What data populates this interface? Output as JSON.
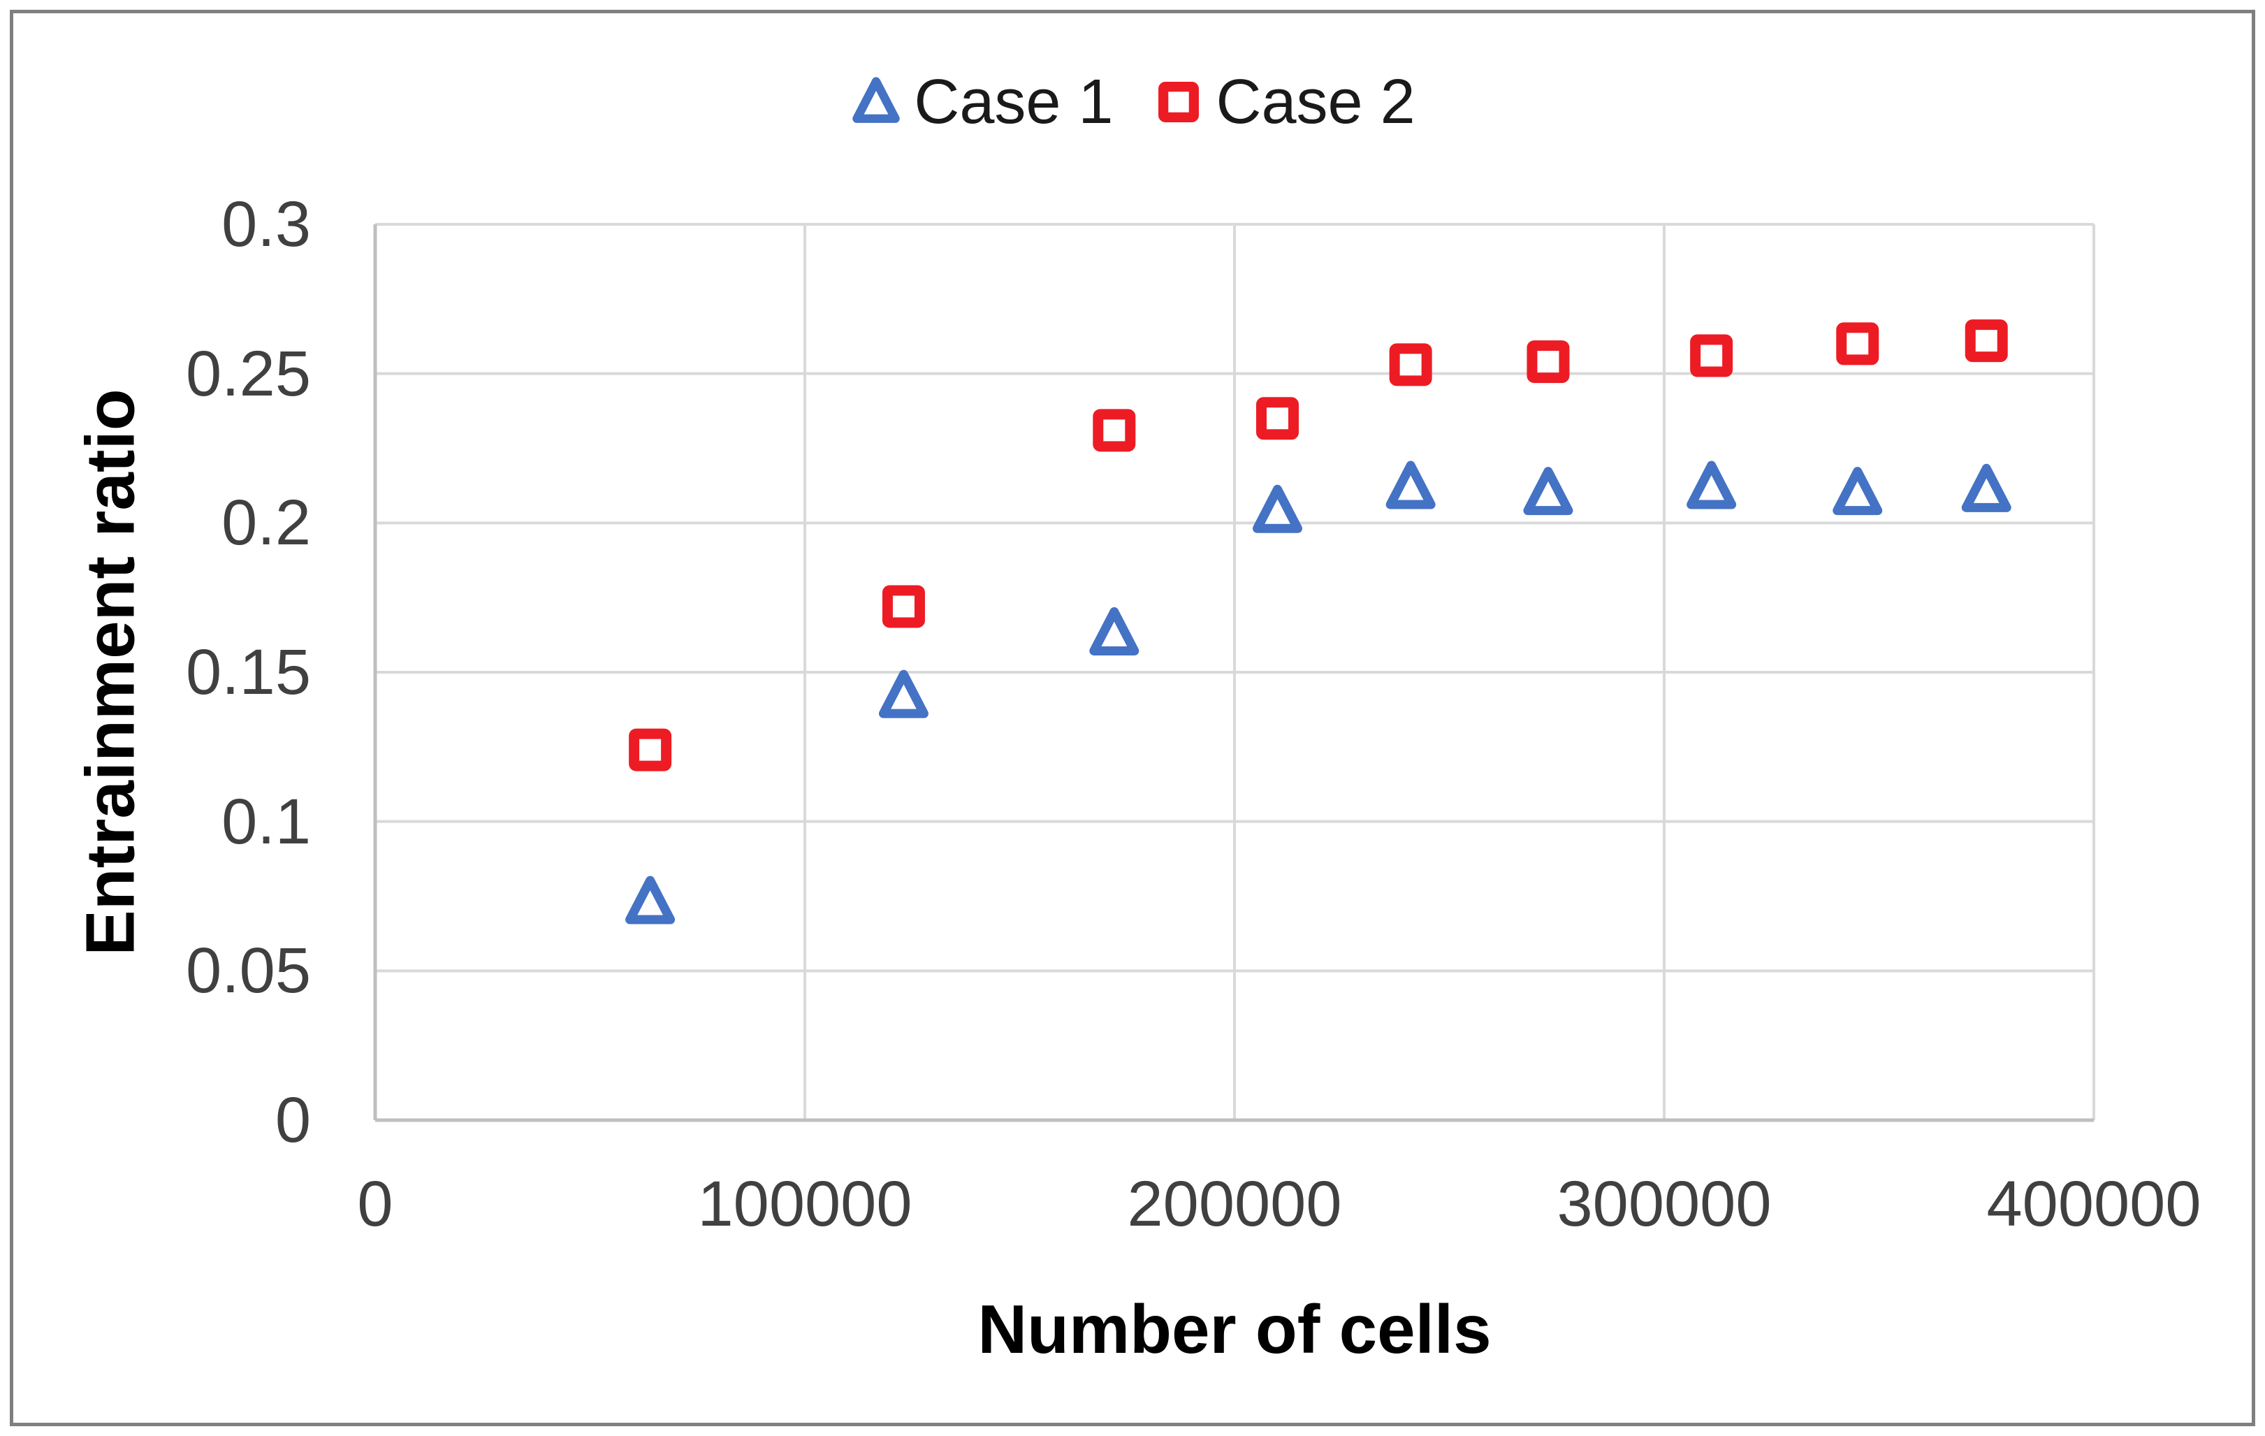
{
  "figure": {
    "background_color": "#FFFFFF",
    "border_color": "#7F7F7F"
  },
  "legend": {
    "position": "top-center",
    "items": [
      {
        "label": "Case 1",
        "marker": "triangle",
        "color": "#4472C4"
      },
      {
        "label": "Case 2",
        "marker": "square",
        "color": "#ED1C24"
      }
    ]
  },
  "chart_data": {
    "type": "scatter",
    "title": "",
    "xlabel": "Number of cells",
    "ylabel": "Entrainment ratio",
    "xlim": [
      0,
      400000
    ],
    "ylim": [
      0,
      0.3
    ],
    "grid": true,
    "legend_position": "top-center",
    "gridline_color": "#D9D9D9",
    "axis_line_color": "#BFBFBF",
    "tick_label_color": "#404040",
    "marker_fill": "#FFFFFF",
    "x_tick_values": [
      0,
      100000,
      200000,
      300000,
      400000
    ],
    "x_tick_labels": [
      "0",
      "100000",
      "200000",
      "300000",
      "400000"
    ],
    "y_tick_values": [
      0,
      0.05,
      0.1,
      0.15,
      0.2,
      0.25,
      0.3
    ],
    "y_tick_labels": [
      "0",
      "0.05",
      "0.1",
      "0.15",
      "0.2",
      "0.25",
      "0.3"
    ],
    "series": [
      {
        "name": "Case 1",
        "marker": "triangle",
        "color": "#4472C4",
        "x": [
          64000,
          123000,
          172000,
          210000,
          241000,
          273000,
          311000,
          345000,
          375000
        ],
        "y": [
          0.073,
          0.142,
          0.163,
          0.204,
          0.212,
          0.21,
          0.212,
          0.21,
          0.211
        ]
      },
      {
        "name": "Case 2",
        "marker": "square",
        "color": "#ED1C24",
        "x": [
          64000,
          123000,
          172000,
          210000,
          241000,
          273000,
          311000,
          345000,
          375000
        ],
        "y": [
          0.124,
          0.172,
          0.231,
          0.235,
          0.253,
          0.254,
          0.256,
          0.26,
          0.261
        ]
      }
    ]
  }
}
